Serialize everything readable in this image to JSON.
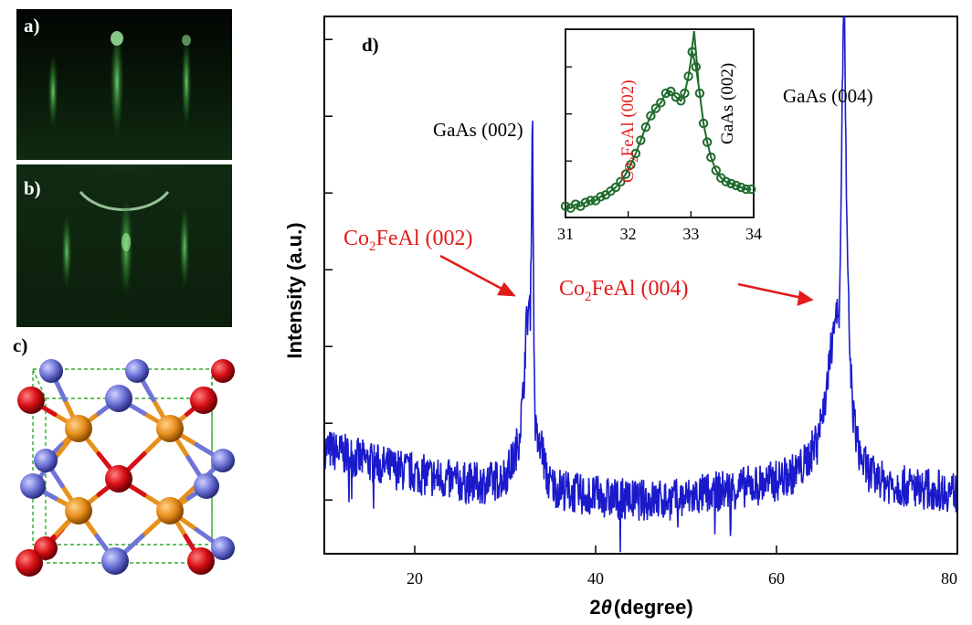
{
  "panels": {
    "a": {
      "label": "a)"
    },
    "b": {
      "label": "b)"
    },
    "c": {
      "label": "c)"
    },
    "d": {
      "label": "d)"
    }
  },
  "colors": {
    "main_line": "#1a1acc",
    "inset_line": "#1e6b2c",
    "annotation_red": "#e21b1b",
    "rheed_glow": "#5fd35f",
    "atom_red": "#d80f16",
    "atom_blue": "#6e74d8",
    "atom_orange": "#e8901c",
    "cell_edges": "#2eaa2e"
  },
  "chart_data": [
    {
      "type": "line",
      "title": "",
      "xlabel": "2θ (degree)",
      "xlabel_prefix": "2",
      "xlabel_theta": "θ",
      "xlabel_suffix": "(degree)",
      "ylabel": "Intensity (a.u.)",
      "xlim": [
        10,
        80
      ],
      "ylim": [
        0,
        7
      ],
      "x_ticks": [
        20,
        40,
        60,
        80
      ],
      "x_tick_labels": [
        "20",
        "40",
        "60",
        "80"
      ],
      "y_ticks_unlabeled": [
        0.7,
        1.7,
        2.7,
        3.7,
        4.7,
        5.7,
        6.7
      ],
      "grid": false,
      "series": [
        {
          "x": [
            10,
            12,
            14,
            16,
            18,
            20,
            22,
            24,
            26,
            28,
            29,
            30,
            31,
            31.5,
            32,
            32.3,
            32.6,
            32.8,
            32.9,
            33.0,
            33.05,
            33.1,
            33.2,
            33.35,
            33.5,
            33.8,
            34.0,
            34.3,
            34.6,
            35,
            36,
            38,
            40,
            42,
            44,
            46,
            48,
            50,
            52,
            54,
            56,
            58,
            60,
            62,
            63,
            64,
            65,
            65.5,
            66,
            66.4,
            66.8,
            67.0,
            67.2,
            67.35,
            67.45,
            67.6,
            67.8,
            68.1,
            68.5,
            69,
            69.5,
            70,
            71,
            72,
            74,
            76,
            78,
            80
          ],
          "y": [
            1.38,
            1.3,
            1.23,
            1.16,
            1.1,
            1.05,
            1.0,
            0.95,
            0.92,
            0.92,
            0.95,
            1.02,
            1.25,
            1.5,
            2.05,
            2.9,
            3.22,
            3.15,
            4.4,
            5.6,
            5.75,
            4.0,
            2.5,
            1.6,
            1.5,
            1.35,
            1.45,
            1.2,
            1.0,
            0.9,
            0.85,
            0.78,
            0.75,
            0.72,
            0.7,
            0.7,
            0.7,
            0.72,
            0.78,
            0.82,
            0.86,
            0.9,
            0.95,
            1.05,
            1.15,
            1.35,
            1.75,
            2.1,
            2.6,
            3.1,
            3.12,
            3.6,
            5.2,
            6.6,
            7.6,
            6.0,
            4.0,
            2.6,
            1.8,
            1.4,
            1.2,
            1.1,
            0.97,
            0.93,
            0.88,
            0.85,
            0.83,
            0.8
          ]
        }
      ],
      "annotations": {
        "gaas_002": "GaAs (002)",
        "gaas_004": "GaAs (004)",
        "cfa_002_co": "Co",
        "cfa_002_sub": "2",
        "cfa_002_rest": "FeAl (002)",
        "cfa_004_co": "Co",
        "cfa_004_sub": "2",
        "cfa_004_rest": "FeAl (004)"
      }
    },
    {
      "type": "scatter",
      "title": "",
      "xlabel": "",
      "ylabel": "",
      "xlim": [
        31,
        34
      ],
      "ylim": [
        0,
        1
      ],
      "x_ticks": [
        31,
        32,
        33,
        34
      ],
      "x_tick_labels": [
        "31",
        "32",
        "33",
        "34"
      ],
      "y_ticks_unlabeled": [
        0.05,
        0.3,
        0.55,
        0.8
      ],
      "series": [
        {
          "x": [
            31.0,
            31.08,
            31.16,
            31.24,
            31.32,
            31.4,
            31.48,
            31.56,
            31.64,
            31.72,
            31.8,
            31.88,
            31.96,
            32.04,
            32.12,
            32.2,
            32.28,
            32.36,
            32.44,
            32.52,
            32.6,
            32.68,
            32.76,
            32.84,
            32.9,
            32.96,
            33.02,
            33.08,
            33.14,
            33.2,
            33.26,
            33.32,
            33.4,
            33.48,
            33.56,
            33.64,
            33.72,
            33.8,
            33.88,
            33.96
          ],
          "y": [
            0.06,
            0.05,
            0.07,
            0.06,
            0.08,
            0.09,
            0.09,
            0.11,
            0.12,
            0.14,
            0.16,
            0.19,
            0.23,
            0.28,
            0.34,
            0.41,
            0.48,
            0.54,
            0.58,
            0.61,
            0.66,
            0.67,
            0.64,
            0.62,
            0.66,
            0.75,
            0.88,
            0.8,
            0.66,
            0.5,
            0.4,
            0.32,
            0.25,
            0.21,
            0.19,
            0.18,
            0.17,
            0.16,
            0.15,
            0.15
          ]
        }
      ],
      "annotations": {
        "cfa_co": "Co",
        "cfa_sub": "2",
        "cfa_rest": "FeAl (002)",
        "gaas": "GaAs (002)"
      }
    }
  ]
}
